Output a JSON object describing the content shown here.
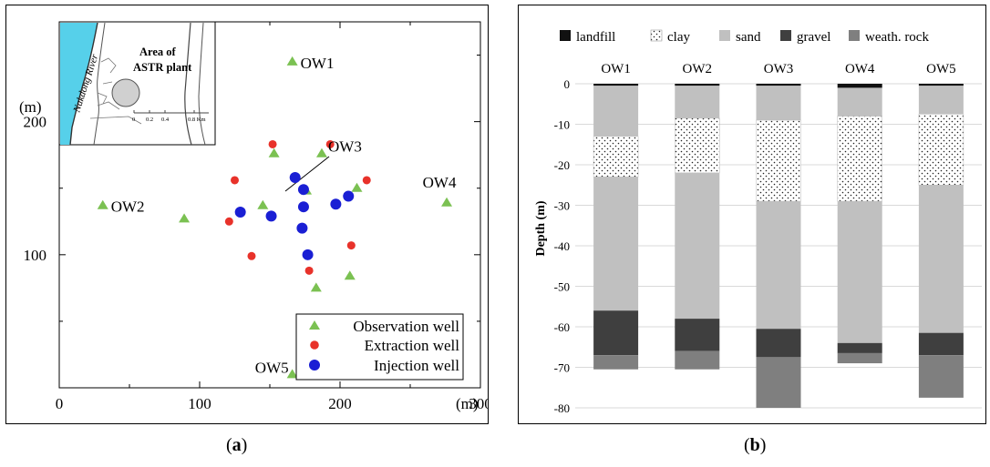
{
  "panel_a": {
    "caption": "(a)",
    "axis": {
      "y_unit": "(m)",
      "x_unit": "(m)"
    },
    "inset": {
      "river_label": "Nakdong River",
      "area_label_1": "Area of",
      "area_label_2": "ASTR plant",
      "scale_labels": [
        "0",
        "0.2",
        "0.4",
        "0.8 Km"
      ]
    },
    "legend": [
      {
        "label": "Observation well",
        "shape": "triangle",
        "color": "#7bc152"
      },
      {
        "label": "Extraction well",
        "shape": "circle",
        "color": "#e8322a"
      },
      {
        "label": "Injection well",
        "shape": "circle",
        "color": "#1a1fd4"
      }
    ],
    "colors": {
      "river": "#56d0ea",
      "observation": "#7bc152",
      "extraction": "#e8322a",
      "injection": "#1a1fd4"
    }
  },
  "panel_b": {
    "caption": "(b)"
  },
  "chart_data": [
    {
      "type": "scatter",
      "xlim": [
        0,
        300
      ],
      "ylim": [
        0,
        275
      ],
      "x_ticks": [
        0,
        100,
        200,
        300
      ],
      "y_ticks": [
        100,
        200
      ],
      "xlabel": "(m)",
      "ylabel": "(m)",
      "series": [
        {
          "name": "Observation well",
          "points": [
            [
              166,
              245
            ],
            [
              31,
              137
            ],
            [
              89,
              127
            ],
            [
              153,
              176
            ],
            [
              187,
              176
            ],
            [
              145,
              137
            ],
            [
              176,
              148
            ],
            [
              212,
              150
            ],
            [
              276,
              139
            ],
            [
              207,
              84
            ],
            [
              183,
              75
            ],
            [
              166,
              10
            ]
          ]
        },
        {
          "name": "Extraction well",
          "points": [
            [
              152,
              183
            ],
            [
              193,
              183
            ],
            [
              125,
              156
            ],
            [
              219,
              156
            ],
            [
              121,
              125
            ],
            [
              208,
              107
            ],
            [
              137,
              99
            ],
            [
              178,
              88
            ]
          ]
        },
        {
          "name": "Injection well",
          "points": [
            [
              168,
              158
            ],
            [
              174,
              149
            ],
            [
              206,
              144
            ],
            [
              197,
              138
            ],
            [
              174,
              136
            ],
            [
              129,
              132
            ],
            [
              151,
              129
            ],
            [
              173,
              120
            ],
            [
              177,
              100
            ]
          ]
        }
      ],
      "annotations": [
        {
          "text": "OW1",
          "x": 166,
          "y": 245
        },
        {
          "text": "OW2",
          "x": 31,
          "y": 137
        },
        {
          "text": "OW3",
          "x": 176,
          "y": 148
        },
        {
          "text": "OW4",
          "x": 276,
          "y": 139
        },
        {
          "text": "OW5",
          "x": 166,
          "y": 10
        }
      ]
    },
    {
      "type": "bar",
      "stacked": true,
      "categories": [
        "OW1",
        "OW2",
        "OW3",
        "OW4",
        "OW5"
      ],
      "ylabel": "Depth (m)",
      "ylim": [
        -80,
        0
      ],
      "y_ticks": [
        0,
        -10,
        -20,
        -30,
        -40,
        -50,
        -60,
        -70,
        -80
      ],
      "grid": true,
      "legend_position": "top",
      "series": [
        {
          "name": "landfill",
          "color": "#111111",
          "pattern": "solid",
          "values": [
            [
              0,
              -0.5
            ],
            [
              0,
              -0.5
            ],
            [
              0,
              -0.5
            ],
            [
              0,
              -1
            ],
            [
              0,
              -0.5
            ]
          ]
        },
        {
          "name": "clay",
          "color": "#ffffff",
          "pattern": "dotted",
          "values": [
            [
              -13,
              -23
            ],
            [
              -8.5,
              -22
            ],
            [
              -9,
              -29
            ],
            [
              -8,
              -29
            ],
            [
              -7.5,
              -25
            ]
          ]
        },
        {
          "name": "sand",
          "color": "#c0c0c0",
          "pattern": "solid",
          "values": [
            [
              -0.5,
              -13
            ],
            [
              -0.5,
              -8.5
            ],
            [
              -0.5,
              -9
            ],
            [
              -1,
              -8
            ],
            [
              -0.5,
              -7.5
            ],
            [
              -23,
              -56
            ],
            [
              -22,
              -58
            ],
            [
              -29,
              -60.5
            ],
            [
              -29,
              -64
            ],
            [
              -25,
              -61.5
            ]
          ]
        },
        {
          "name": "gravel",
          "color": "#3f3f3f",
          "pattern": "solid",
          "values": [
            [
              -56,
              -67
            ],
            [
              -58,
              -66
            ],
            [
              -60.5,
              -67.5
            ],
            [
              -64,
              -66.5
            ],
            [
              -61.5,
              -67
            ]
          ]
        },
        {
          "name": "weath. rock",
          "color": "#7f7f7f",
          "pattern": "solid",
          "values": [
            [
              -67,
              -70.5
            ],
            [
              -66,
              -70.5
            ],
            [
              -67.5,
              -80
            ],
            [
              -66.5,
              -69
            ],
            [
              -67,
              -77.5
            ]
          ]
        }
      ],
      "layers": {
        "OW1": [
          [
            "landfill",
            0,
            -0.5
          ],
          [
            "sand",
            -0.5,
            -13
          ],
          [
            "clay",
            -13,
            -23
          ],
          [
            "sand",
            -23,
            -56
          ],
          [
            "gravel",
            -56,
            -67
          ],
          [
            "weath. rock",
            -67,
            -70.5
          ]
        ],
        "OW2": [
          [
            "landfill",
            0,
            -0.5
          ],
          [
            "sand",
            -0.5,
            -8.5
          ],
          [
            "clay",
            -8.5,
            -22
          ],
          [
            "sand",
            -22,
            -58
          ],
          [
            "gravel",
            -58,
            -66
          ],
          [
            "weath. rock",
            -66,
            -70.5
          ]
        ],
        "OW3": [
          [
            "landfill",
            0,
            -0.5
          ],
          [
            "sand",
            -0.5,
            -9
          ],
          [
            "clay",
            -9,
            -29
          ],
          [
            "sand",
            -29,
            -60.5
          ],
          [
            "gravel",
            -60.5,
            -67.5
          ],
          [
            "weath. rock",
            -67.5,
            -80
          ]
        ],
        "OW4": [
          [
            "landfill",
            0,
            -1
          ],
          [
            "sand",
            -1,
            -8
          ],
          [
            "clay",
            -8,
            -29
          ],
          [
            "sand",
            -29,
            -64
          ],
          [
            "gravel",
            -64,
            -66.5
          ],
          [
            "weath. rock",
            -66.5,
            -69
          ]
        ],
        "OW5": [
          [
            "landfill",
            0,
            -0.5
          ],
          [
            "sand",
            -0.5,
            -7.5
          ],
          [
            "clay",
            -7.5,
            -25
          ],
          [
            "sand",
            -25,
            -61.5
          ],
          [
            "gravel",
            -61.5,
            -67
          ],
          [
            "weath. rock",
            -67,
            -77.5
          ]
        ]
      }
    }
  ]
}
